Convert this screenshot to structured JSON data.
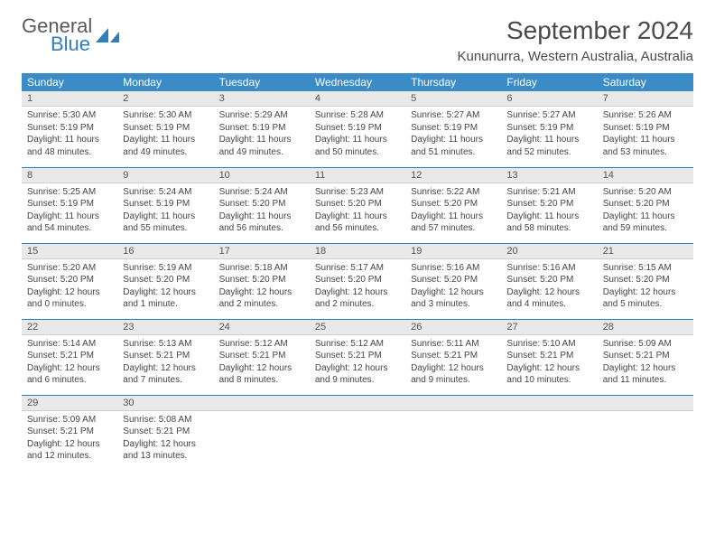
{
  "brand": {
    "general": "General",
    "blue": "Blue"
  },
  "title": "September 2024",
  "location": "Kununurra, Western Australia, Australia",
  "colors": {
    "header_bg": "#3b8bc6",
    "header_text": "#ffffff",
    "day_num_bg": "#e9e9e9",
    "row_divider": "#2f7fbf",
    "logo_blue": "#2f7fbf",
    "text": "#444444"
  },
  "weekdays": [
    "Sunday",
    "Monday",
    "Tuesday",
    "Wednesday",
    "Thursday",
    "Friday",
    "Saturday"
  ],
  "days": [
    {
      "n": "1",
      "sunrise": "Sunrise: 5:30 AM",
      "sunset": "Sunset: 5:19 PM",
      "day1": "Daylight: 11 hours",
      "day2": "and 48 minutes."
    },
    {
      "n": "2",
      "sunrise": "Sunrise: 5:30 AM",
      "sunset": "Sunset: 5:19 PM",
      "day1": "Daylight: 11 hours",
      "day2": "and 49 minutes."
    },
    {
      "n": "3",
      "sunrise": "Sunrise: 5:29 AM",
      "sunset": "Sunset: 5:19 PM",
      "day1": "Daylight: 11 hours",
      "day2": "and 49 minutes."
    },
    {
      "n": "4",
      "sunrise": "Sunrise: 5:28 AM",
      "sunset": "Sunset: 5:19 PM",
      "day1": "Daylight: 11 hours",
      "day2": "and 50 minutes."
    },
    {
      "n": "5",
      "sunrise": "Sunrise: 5:27 AM",
      "sunset": "Sunset: 5:19 PM",
      "day1": "Daylight: 11 hours",
      "day2": "and 51 minutes."
    },
    {
      "n": "6",
      "sunrise": "Sunrise: 5:27 AM",
      "sunset": "Sunset: 5:19 PM",
      "day1": "Daylight: 11 hours",
      "day2": "and 52 minutes."
    },
    {
      "n": "7",
      "sunrise": "Sunrise: 5:26 AM",
      "sunset": "Sunset: 5:19 PM",
      "day1": "Daylight: 11 hours",
      "day2": "and 53 minutes."
    },
    {
      "n": "8",
      "sunrise": "Sunrise: 5:25 AM",
      "sunset": "Sunset: 5:19 PM",
      "day1": "Daylight: 11 hours",
      "day2": "and 54 minutes."
    },
    {
      "n": "9",
      "sunrise": "Sunrise: 5:24 AM",
      "sunset": "Sunset: 5:19 PM",
      "day1": "Daylight: 11 hours",
      "day2": "and 55 minutes."
    },
    {
      "n": "10",
      "sunrise": "Sunrise: 5:24 AM",
      "sunset": "Sunset: 5:20 PM",
      "day1": "Daylight: 11 hours",
      "day2": "and 56 minutes."
    },
    {
      "n": "11",
      "sunrise": "Sunrise: 5:23 AM",
      "sunset": "Sunset: 5:20 PM",
      "day1": "Daylight: 11 hours",
      "day2": "and 56 minutes."
    },
    {
      "n": "12",
      "sunrise": "Sunrise: 5:22 AM",
      "sunset": "Sunset: 5:20 PM",
      "day1": "Daylight: 11 hours",
      "day2": "and 57 minutes."
    },
    {
      "n": "13",
      "sunrise": "Sunrise: 5:21 AM",
      "sunset": "Sunset: 5:20 PM",
      "day1": "Daylight: 11 hours",
      "day2": "and 58 minutes."
    },
    {
      "n": "14",
      "sunrise": "Sunrise: 5:20 AM",
      "sunset": "Sunset: 5:20 PM",
      "day1": "Daylight: 11 hours",
      "day2": "and 59 minutes."
    },
    {
      "n": "15",
      "sunrise": "Sunrise: 5:20 AM",
      "sunset": "Sunset: 5:20 PM",
      "day1": "Daylight: 12 hours",
      "day2": "and 0 minutes."
    },
    {
      "n": "16",
      "sunrise": "Sunrise: 5:19 AM",
      "sunset": "Sunset: 5:20 PM",
      "day1": "Daylight: 12 hours",
      "day2": "and 1 minute."
    },
    {
      "n": "17",
      "sunrise": "Sunrise: 5:18 AM",
      "sunset": "Sunset: 5:20 PM",
      "day1": "Daylight: 12 hours",
      "day2": "and 2 minutes."
    },
    {
      "n": "18",
      "sunrise": "Sunrise: 5:17 AM",
      "sunset": "Sunset: 5:20 PM",
      "day1": "Daylight: 12 hours",
      "day2": "and 2 minutes."
    },
    {
      "n": "19",
      "sunrise": "Sunrise: 5:16 AM",
      "sunset": "Sunset: 5:20 PM",
      "day1": "Daylight: 12 hours",
      "day2": "and 3 minutes."
    },
    {
      "n": "20",
      "sunrise": "Sunrise: 5:16 AM",
      "sunset": "Sunset: 5:20 PM",
      "day1": "Daylight: 12 hours",
      "day2": "and 4 minutes."
    },
    {
      "n": "21",
      "sunrise": "Sunrise: 5:15 AM",
      "sunset": "Sunset: 5:20 PM",
      "day1": "Daylight: 12 hours",
      "day2": "and 5 minutes."
    },
    {
      "n": "22",
      "sunrise": "Sunrise: 5:14 AM",
      "sunset": "Sunset: 5:21 PM",
      "day1": "Daylight: 12 hours",
      "day2": "and 6 minutes."
    },
    {
      "n": "23",
      "sunrise": "Sunrise: 5:13 AM",
      "sunset": "Sunset: 5:21 PM",
      "day1": "Daylight: 12 hours",
      "day2": "and 7 minutes."
    },
    {
      "n": "24",
      "sunrise": "Sunrise: 5:12 AM",
      "sunset": "Sunset: 5:21 PM",
      "day1": "Daylight: 12 hours",
      "day2": "and 8 minutes."
    },
    {
      "n": "25",
      "sunrise": "Sunrise: 5:12 AM",
      "sunset": "Sunset: 5:21 PM",
      "day1": "Daylight: 12 hours",
      "day2": "and 9 minutes."
    },
    {
      "n": "26",
      "sunrise": "Sunrise: 5:11 AM",
      "sunset": "Sunset: 5:21 PM",
      "day1": "Daylight: 12 hours",
      "day2": "and 9 minutes."
    },
    {
      "n": "27",
      "sunrise": "Sunrise: 5:10 AM",
      "sunset": "Sunset: 5:21 PM",
      "day1": "Daylight: 12 hours",
      "day2": "and 10 minutes."
    },
    {
      "n": "28",
      "sunrise": "Sunrise: 5:09 AM",
      "sunset": "Sunset: 5:21 PM",
      "day1": "Daylight: 12 hours",
      "day2": "and 11 minutes."
    },
    {
      "n": "29",
      "sunrise": "Sunrise: 5:09 AM",
      "sunset": "Sunset: 5:21 PM",
      "day1": "Daylight: 12 hours",
      "day2": "and 12 minutes."
    },
    {
      "n": "30",
      "sunrise": "Sunrise: 5:08 AM",
      "sunset": "Sunset: 5:21 PM",
      "day1": "Daylight: 12 hours",
      "day2": "and 13 minutes."
    }
  ],
  "layout": {
    "start_weekday": 0,
    "rows": 5,
    "cols": 7
  }
}
